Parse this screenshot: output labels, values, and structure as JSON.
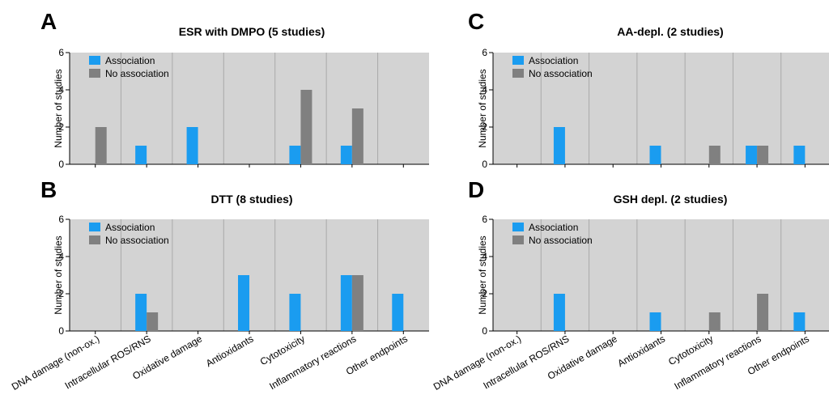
{
  "colors": {
    "association": "#1a9cf0",
    "no_association": "#808080",
    "plot_bg": "#d3d3d3",
    "grid": "#a9a9a9"
  },
  "chart_data": [
    {
      "panel": "A",
      "type": "bar",
      "title": "ESR with DMPO (5 studies)",
      "ylabel": "Number of studies",
      "ylim": [
        0,
        6
      ],
      "yticks": [
        0,
        2,
        4,
        6
      ],
      "legend": "top-left",
      "grid": true,
      "categories": [
        "DNA damage (non-ox.)",
        "Intracellular ROS/RNS",
        "Oxidative damage",
        "Antioxidants",
        "Cytotoxicity",
        "Inflammatory reactions",
        "Other endpoints"
      ],
      "series": [
        {
          "name": "Association",
          "values": [
            0,
            1,
            2,
            0,
            1,
            1,
            0
          ]
        },
        {
          "name": "No association",
          "values": [
            2,
            0,
            0,
            0,
            4,
            3,
            0
          ]
        }
      ]
    },
    {
      "panel": "B",
      "type": "bar",
      "title": "DTT (8 studies)",
      "ylabel": "Number of studies",
      "ylim": [
        0,
        6
      ],
      "yticks": [
        0,
        2,
        4,
        6
      ],
      "legend": "top-left",
      "grid": true,
      "categories": [
        "DNA damage (non-ox.)",
        "Intracellular ROS/RNS",
        "Oxidative damage",
        "Antioxidants",
        "Cytotoxicity",
        "Inflammatory reactions",
        "Other endpoints"
      ],
      "series": [
        {
          "name": "Association",
          "values": [
            0,
            2,
            0,
            3,
            2,
            3,
            2
          ]
        },
        {
          "name": "No association",
          "values": [
            0,
            1,
            0,
            0,
            0,
            3,
            0
          ]
        }
      ]
    },
    {
      "panel": "C",
      "type": "bar",
      "title": "AA-depl. (2 studies)",
      "ylabel": "Number of studies",
      "ylim": [
        0,
        6
      ],
      "yticks": [
        0,
        2,
        4,
        6
      ],
      "legend": "top-left",
      "grid": true,
      "categories": [
        "DNA damage (non-ox.)",
        "Intracellular ROS/RNS",
        "Oxidative damage",
        "Antioxidants",
        "Cytotoxicity",
        "Inflammatory reactions",
        "Other endpoints"
      ],
      "series": [
        {
          "name": "Association",
          "values": [
            0,
            2,
            0,
            1,
            0,
            1,
            1
          ]
        },
        {
          "name": "No association",
          "values": [
            0,
            0,
            0,
            0,
            1,
            1,
            0
          ]
        }
      ]
    },
    {
      "panel": "D",
      "type": "bar",
      "title": "GSH depl. (2 studies)",
      "ylabel": "Number of studies",
      "ylim": [
        0,
        6
      ],
      "yticks": [
        0,
        2,
        4,
        6
      ],
      "legend": "top-left",
      "grid": true,
      "categories": [
        "DNA damage (non-ox.)",
        "Intracellular ROS/RNS",
        "Oxidative damage",
        "Antioxidants",
        "Cytotoxicity",
        "Inflammatory reactions",
        "Other endpoints"
      ],
      "series": [
        {
          "name": "Association",
          "values": [
            0,
            2,
            0,
            1,
            0,
            0,
            1
          ]
        },
        {
          "name": "No association",
          "values": [
            0,
            0,
            0,
            0,
            1,
            2,
            0
          ]
        }
      ]
    }
  ]
}
